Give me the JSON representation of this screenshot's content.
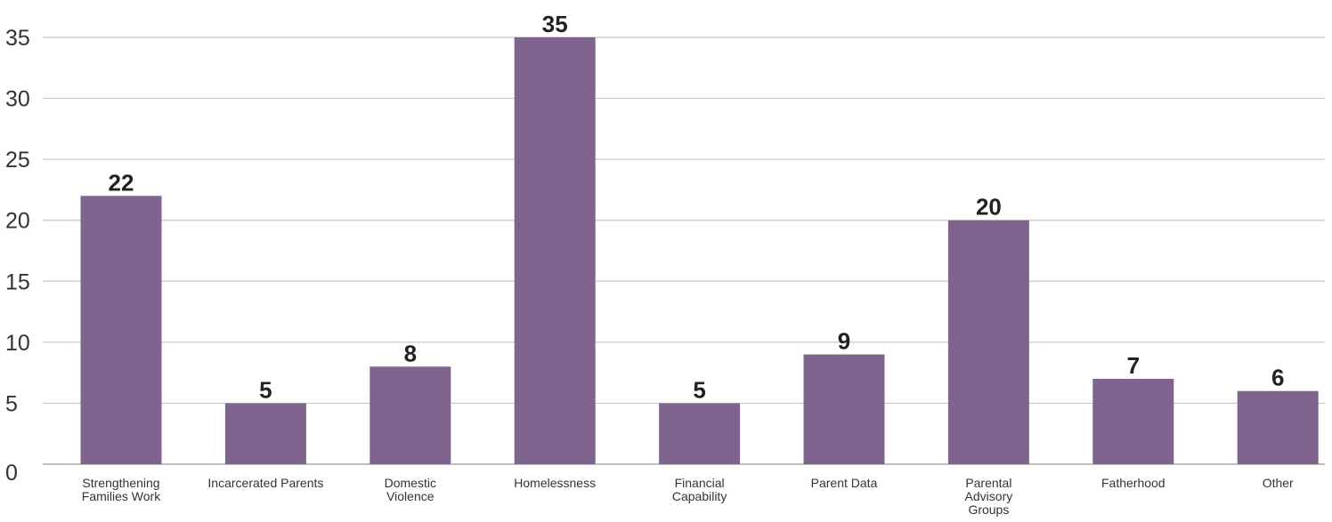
{
  "chart_data": {
    "type": "bar",
    "title": "",
    "xlabel": "",
    "ylabel": "",
    "categories": [
      [
        "Strengthening",
        "Families Work"
      ],
      [
        "Incarcerated Parents"
      ],
      [
        "Domestic",
        "Violence"
      ],
      [
        "Homelessness"
      ],
      [
        "Financial",
        "Capability"
      ],
      [
        "Parent Data"
      ],
      [
        "Parental",
        "Advisory",
        "Groups"
      ],
      [
        "Fatherhood"
      ],
      [
        "Other"
      ]
    ],
    "values": [
      22,
      5,
      8,
      35,
      5,
      9,
      20,
      7,
      6
    ],
    "ylim": [
      0,
      35
    ],
    "yticks": [
      0,
      5,
      10,
      15,
      20,
      25,
      30,
      35
    ],
    "grid": true,
    "legend": "none",
    "colors": {
      "bar": "#7f658d",
      "grid": "#c8c8c8",
      "text": "#333333"
    }
  }
}
